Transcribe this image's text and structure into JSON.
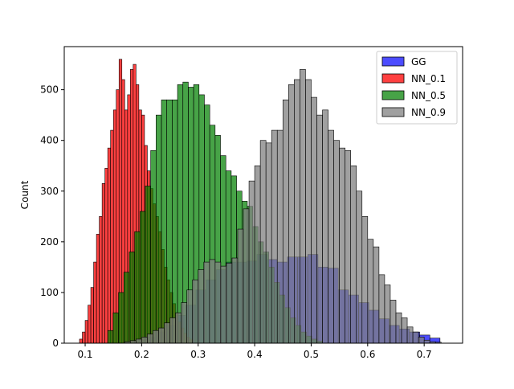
{
  "chart_data": {
    "type": "histogram",
    "title": "",
    "xlabel": "",
    "ylabel": "Count",
    "xlim": [
      0.063,
      0.768
    ],
    "ylim": [
      0,
      585
    ],
    "grid": false,
    "legend_placement": "top-right",
    "x_ticks": [
      0.1,
      0.2,
      0.3,
      0.4,
      0.5,
      0.6,
      0.7
    ],
    "x_tick_labels": [
      "0.1",
      "0.2",
      "0.3",
      "0.4",
      "0.5",
      "0.6",
      "0.7"
    ],
    "y_ticks": [
      0,
      100,
      200,
      300,
      400,
      500
    ],
    "y_tick_labels": [
      "0",
      "100",
      "200",
      "300",
      "400",
      "500"
    ],
    "series": [
      {
        "name": "GG",
        "color": "#0000ff",
        "opacity": 0.7,
        "bin_start": 0.17,
        "bin_width": 0.018,
        "counts": [
          3,
          6,
          12,
          22,
          35,
          55,
          75,
          105,
          125,
          145,
          160,
          160,
          162,
          175,
          165,
          160,
          170,
          170,
          175,
          150,
          148,
          105,
          95,
          80,
          65,
          48,
          35,
          28,
          22,
          16,
          10
        ]
      },
      {
        "name": "NN_0.1",
        "color": "#ff0000",
        "opacity": 0.75,
        "bin_start": 0.09,
        "bin_width": 0.005,
        "counts": [
          8,
          22,
          45,
          75,
          110,
          160,
          215,
          250,
          315,
          345,
          385,
          420,
          460,
          500,
          560,
          520,
          460,
          490,
          540,
          550,
          510,
          460,
          450,
          390,
          340,
          305,
          275,
          250,
          220,
          185,
          150,
          125,
          100,
          78,
          60,
          42,
          30,
          20,
          12,
          8
        ]
      },
      {
        "name": "NN_0.5",
        "color": "#008000",
        "opacity": 0.72,
        "bin_start": 0.14,
        "bin_width": 0.0095,
        "counts": [
          25,
          60,
          100,
          140,
          180,
          220,
          260,
          310,
          380,
          450,
          480,
          480,
          480,
          510,
          515,
          505,
          510,
          490,
          470,
          430,
          410,
          370,
          340,
          330,
          300,
          280,
          270,
          230,
          200,
          180,
          150,
          120,
          95,
          70,
          50,
          35,
          22,
          14,
          8,
          4
        ]
      },
      {
        "name": "NN_0.9",
        "color": "#808080",
        "opacity": 0.75,
        "bin_start": 0.17,
        "bin_width": 0.01,
        "counts": [
          3,
          5,
          8,
          12,
          18,
          25,
          30,
          40,
          50,
          60,
          80,
          105,
          125,
          145,
          160,
          165,
          160,
          152,
          158,
          168,
          225,
          265,
          320,
          350,
          400,
          395,
          420,
          420,
          480,
          510,
          520,
          540,
          520,
          485,
          450,
          460,
          420,
          400,
          385,
          380,
          350,
          300,
          250,
          205,
          190,
          135,
          115,
          85,
          60,
          50,
          32,
          22,
          12,
          6,
          3,
          2
        ]
      }
    ]
  }
}
